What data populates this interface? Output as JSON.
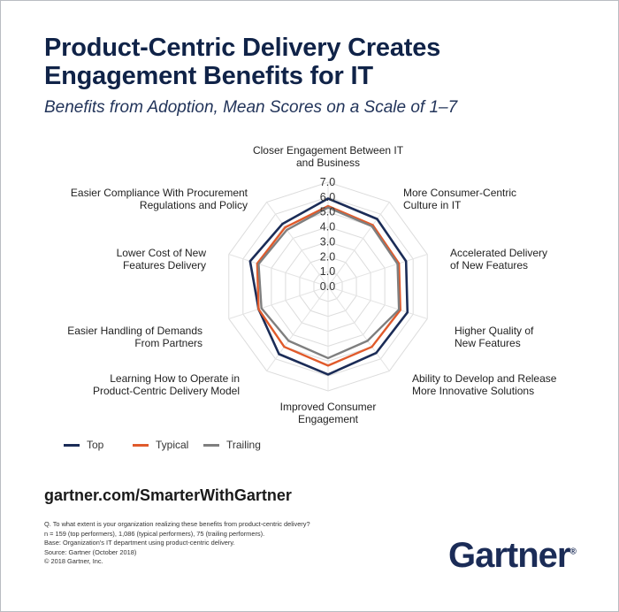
{
  "header": {
    "title_line1": "Product-Centric Delivery Creates",
    "title_line2": "Engagement Benefits for IT",
    "subtitle": "Benefits from Adoption, Mean Scores on a Scale of 1–7"
  },
  "chart_data": {
    "type": "radar",
    "axes": [
      [
        "Closer Engagement Between IT",
        "and Business"
      ],
      [
        "More Consumer-Centric",
        "Culture in IT"
      ],
      [
        "Accelerated Delivery",
        "of New Features"
      ],
      [
        "Higher Quality of",
        "New Features"
      ],
      [
        "Ability to Develop and Release",
        "More Innovative Solutions"
      ],
      [
        "Improved Consumer",
        "Engagement"
      ],
      [
        "Learning How to Operate in",
        "Product-Centric Delivery Model"
      ],
      [
        "Easier Handling of Demands",
        "From Partners"
      ],
      [
        "Lower Cost of New",
        "Features Delivery"
      ],
      [
        "Easier Compliance With Procurement",
        "Regulations and Policy"
      ]
    ],
    "scale_ticks": [
      "0.0",
      "1.0",
      "2.0",
      "3.0",
      "4.0",
      "5.0",
      "6.0",
      "7.0"
    ],
    "range": [
      0,
      7
    ],
    "series": [
      {
        "name": "Top",
        "color": "#1b2c57",
        "values": [
          5.9,
          5.6,
          5.5,
          5.6,
          5.5,
          5.9,
          5.6,
          4.9,
          5.5,
          5.2
        ]
      },
      {
        "name": "Typical",
        "color": "#e05a2b",
        "values": [
          5.4,
          5.1,
          5.0,
          5.1,
          5.0,
          5.3,
          5.0,
          4.9,
          5.0,
          4.9
        ]
      },
      {
        "name": "Trailing",
        "color": "#7f7f7f",
        "values": [
          5.3,
          5.0,
          4.9,
          5.0,
          4.5,
          4.8,
          4.5,
          4.7,
          4.9,
          4.7
        ]
      }
    ]
  },
  "legend": {
    "top": "Top",
    "typical": "Typical",
    "trailing": "Trailing"
  },
  "footer": {
    "url": "gartner.com/SmarterWithGartner",
    "notes": [
      "Q. To what extent is your organization realizing these benefits from product-centric delivery?",
      "n = 159 (top performers), 1,086 (typical performers), 75 (trailing performers).",
      "Base: Organization's IT department using product-centric delivery.",
      "Source: Gartner (October 2018)",
      "© 2018 Gartner, Inc."
    ],
    "logo_text": "Gartner",
    "logo_dot": "®"
  }
}
